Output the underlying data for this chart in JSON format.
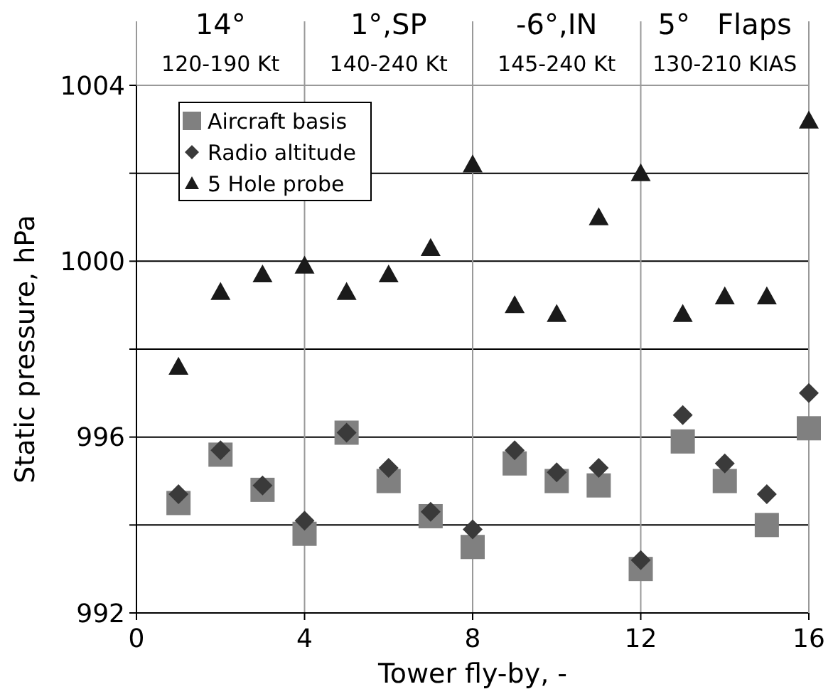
{
  "chart_data": {
    "type": "scatter",
    "xlabel": "Tower fly-by, -",
    "ylabel": "Static pressure, hPa",
    "x": [
      1,
      2,
      3,
      4,
      5,
      6,
      7,
      8,
      9,
      10,
      11,
      12,
      13,
      14,
      15,
      16
    ],
    "series": [
      {
        "name": "Aircraft basis",
        "color": "#808080",
        "marker": "square",
        "values": [
          994.5,
          995.6,
          994.8,
          993.8,
          996.1,
          995.0,
          994.2,
          993.5,
          995.4,
          995.0,
          994.9,
          993.0,
          995.9,
          995.0,
          994.0,
          996.2
        ]
      },
      {
        "name": "Radio altitude",
        "color": "#3a3a3a",
        "marker": "diamond",
        "values": [
          994.7,
          995.7,
          994.9,
          994.1,
          996.1,
          995.3,
          994.3,
          993.9,
          995.7,
          995.2,
          995.3,
          993.2,
          996.5,
          995.4,
          994.7,
          997.0
        ]
      },
      {
        "name": "5 Hole probe",
        "color": "#1a1a1a",
        "marker": "triangle",
        "values": [
          997.6,
          999.3,
          999.7,
          999.9,
          999.3,
          999.7,
          1000.3,
          1002.2,
          999.0,
          998.8,
          1001.0,
          1002.0,
          998.8,
          999.2,
          999.2,
          1003.2
        ]
      }
    ],
    "xlim": [
      0,
      16
    ],
    "xticks": [
      0,
      4,
      8,
      12,
      16
    ],
    "ylim": [
      992,
      1004
    ],
    "yticks": [
      992,
      {
        "value": 994,
        "label": null
      },
      996,
      {
        "value": 998,
        "label": null
      },
      1000,
      {
        "value": 1002,
        "label": null
      },
      1004
    ],
    "grid": true,
    "legend": "top left",
    "annotations": [
      "14°",
      "120-190 Kt",
      "1°,SP",
      "140-240 Kt",
      "-6°,IN",
      "145-240 Kt",
      "5°   Flaps",
      "130-210 KIAS"
    ]
  }
}
